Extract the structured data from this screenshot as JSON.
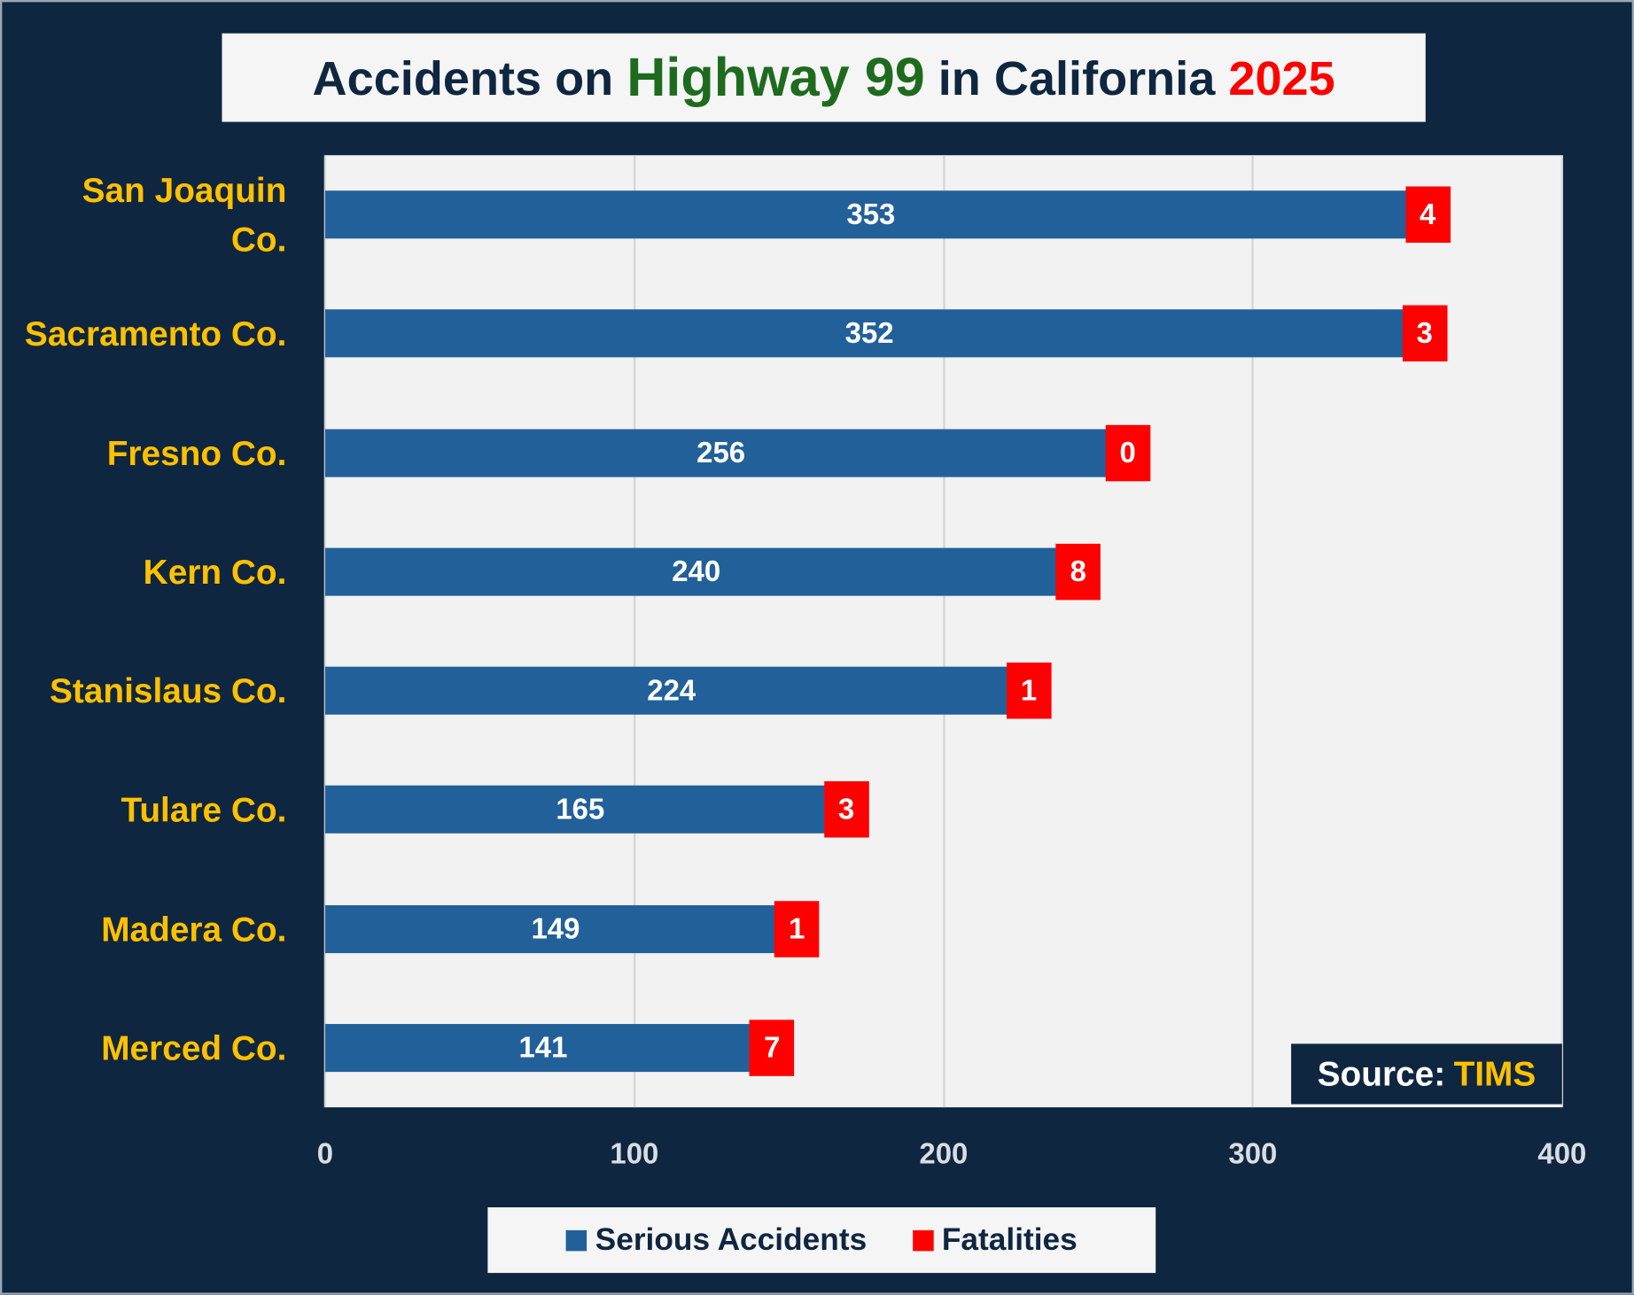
{
  "title": {
    "part1": "Accidents on ",
    "highlight": "Highway 99",
    "part2": " in California ",
    "year": "2025"
  },
  "source": {
    "label": "Source:",
    "value": "TIMS"
  },
  "colors": {
    "background": "#0f2640",
    "serious": "#22609a",
    "fatalities": "#ff0000",
    "category_text": "#ffc000",
    "highlight": "#1e6b1e"
  },
  "chart_data": {
    "type": "bar",
    "orientation": "horizontal",
    "categories": [
      "San Joaquin Co.",
      "Sacramento Co.",
      "Fresno Co.",
      "Kern Co.",
      "Stanislaus Co.",
      "Tulare Co.",
      "Madera Co.",
      "Merced Co."
    ],
    "series": [
      {
        "name": "Serious Accidents",
        "values": [
          353,
          352,
          256,
          240,
          224,
          165,
          149,
          141
        ]
      },
      {
        "name": "Fatalities",
        "values": [
          4,
          3,
          0,
          8,
          1,
          3,
          1,
          7
        ]
      }
    ],
    "xlim": [
      0,
      400
    ],
    "xticks": [
      "0",
      "100",
      "200",
      "300",
      "400"
    ],
    "grid": true,
    "legend": "bottom"
  }
}
